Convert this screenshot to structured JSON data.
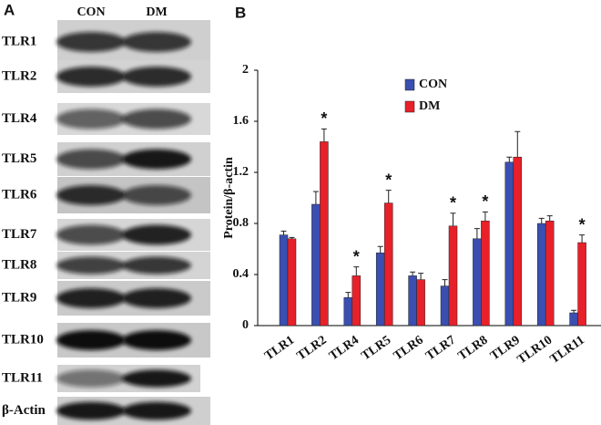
{
  "panel_a": {
    "label": "A",
    "columns": [
      "CON",
      "DM"
    ],
    "rows": [
      "TLR1",
      "TLR2",
      "TLR4",
      "TLR5",
      "TLR6",
      "TLR7",
      "TLR8",
      "TLR9",
      "TLR10",
      "TLR11",
      "β-Actin"
    ]
  },
  "chart_data": {
    "type": "bar",
    "panel_label": "B",
    "ylabel": "Protein/β-actin",
    "categories": [
      "TLR1",
      "TLR2",
      "TLR4",
      "TLR5",
      "TLR6",
      "TLR7",
      "TLR8",
      "TLR9",
      "TLR10",
      "TLR11"
    ],
    "series": [
      {
        "name": "CON",
        "color": "#3a4fb0",
        "values": [
          0.71,
          0.95,
          0.22,
          0.57,
          0.39,
          0.31,
          0.68,
          1.28,
          0.8,
          0.1
        ],
        "errors": [
          0.03,
          0.1,
          0.04,
          0.05,
          0.03,
          0.05,
          0.08,
          0.04,
          0.04,
          0.02
        ]
      },
      {
        "name": "DM",
        "color": "#e8202a",
        "values": [
          0.68,
          1.44,
          0.39,
          0.96,
          0.36,
          0.78,
          0.82,
          1.32,
          0.82,
          0.65
        ],
        "errors": [
          0.01,
          0.1,
          0.07,
          0.1,
          0.05,
          0.1,
          0.07,
          0.2,
          0.04,
          0.06
        ]
      }
    ],
    "significance_labels": [
      null,
      "*",
      "*",
      "*",
      null,
      "*",
      "*",
      null,
      null,
      "*"
    ],
    "ylim": [
      0,
      2
    ],
    "yticks": [
      0,
      0.4,
      0.8,
      1.2,
      1.6,
      2
    ],
    "legend": "top"
  }
}
